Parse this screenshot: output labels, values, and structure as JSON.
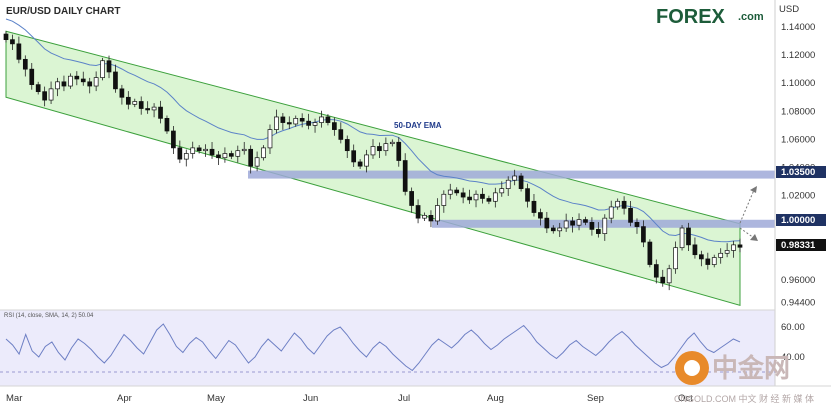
{
  "header": {
    "title": "EUR/USD DAILY CHART",
    "logo_text": "FOREX",
    "logo_suffix": ".com",
    "currency": "USD"
  },
  "chart_data": [
    {
      "type": "candlestick",
      "title": "EUR/USD DAILY CHART",
      "ylabel": "USD",
      "ylim": [
        0.94,
        1.15
      ],
      "y_ticks": [
        "1.14000",
        "1.12000",
        "1.10000",
        "1.08000",
        "1.06000",
        "1.04000",
        "1.02000",
        "0.96000",
        "0.94400"
      ],
      "x_months": [
        "Mar",
        "Apr",
        "May",
        "Jun",
        "Jul",
        "Aug",
        "Sep",
        "Oct"
      ],
      "series": [
        {
          "name": "EUR/USD",
          "close_path": [
            1.131,
            1.128,
            1.117,
            1.11,
            1.099,
            1.094,
            1.088,
            1.096,
            1.101,
            1.098,
            1.105,
            1.103,
            1.101,
            1.098,
            1.104,
            1.116,
            1.108,
            1.096,
            1.09,
            1.085,
            1.087,
            1.082,
            1.081,
            1.083,
            1.075,
            1.066,
            1.054,
            1.046,
            1.05,
            1.054,
            1.052,
            1.053,
            1.049,
            1.047,
            1.05,
            1.048,
            1.052,
            1.053,
            1.041,
            1.047,
            1.054,
            1.067,
            1.076,
            1.072,
            1.071,
            1.075,
            1.073,
            1.07,
            1.072,
            1.076,
            1.072,
            1.067,
            1.06,
            1.052,
            1.044,
            1.041,
            1.049,
            1.055,
            1.052,
            1.057,
            1.058,
            1.045,
            1.023,
            1.013,
            1.004,
            1.006,
            1.002,
            1.013,
            1.021,
            1.024,
            1.022,
            1.019,
            1.017,
            1.021,
            1.018,
            1.016,
            1.022,
            1.025,
            1.031,
            1.034,
            1.025,
            1.016,
            1.008,
            1.004,
            0.997,
            0.995,
            0.997,
            1.002,
            0.999,
            1.003,
            1.001,
            0.996,
            0.993,
            1.004,
            1.012,
            1.016,
            1.011,
            1.001,
            0.998,
            0.987,
            0.971,
            0.962,
            0.958,
            0.968,
            0.983,
            0.997,
            0.985,
            0.978,
            0.975,
            0.971,
            0.976,
            0.979,
            0.981,
            0.985,
            0.9833
          ]
        }
      ],
      "ema_label": "50-DAY EMA",
      "levels": [
        {
          "label": "1.03500",
          "value": 1.035
        },
        {
          "label": "1.00000",
          "value": 1.0
        }
      ],
      "last_price_label": "0.98331",
      "last_price": 0.9833,
      "channel": {
        "upper": [
          1.137,
          1.0
        ],
        "lower": [
          1.09,
          0.942
        ]
      }
    },
    {
      "type": "line",
      "title": "RSI (14, close, SMA, 14, 2) 50.04",
      "ylim": [
        25,
        70
      ],
      "y_ticks": [
        "60.00",
        "40.00"
      ],
      "values": [
        52,
        48,
        42,
        55,
        44,
        40,
        47,
        50,
        43,
        38,
        46,
        52,
        49,
        45,
        40,
        36,
        41,
        48,
        55,
        51,
        46,
        42,
        50,
        58,
        62,
        55,
        47,
        43,
        49,
        53,
        50,
        44,
        39,
        45,
        51,
        48,
        42,
        36,
        40,
        47,
        52,
        48,
        44,
        50,
        56,
        52,
        46,
        42,
        48,
        54,
        58,
        60,
        55,
        49,
        44,
        40,
        46,
        50,
        47,
        42,
        38,
        34,
        31,
        36,
        42,
        48,
        52,
        49,
        46,
        50,
        55,
        58,
        54,
        49,
        45,
        48,
        52,
        55,
        58,
        61,
        56,
        50,
        46,
        42,
        39,
        43,
        48,
        51,
        47,
        44,
        41,
        45,
        50,
        54,
        57,
        53,
        48,
        44,
        40,
        36,
        33,
        35,
        40,
        46,
        52,
        56,
        50,
        45,
        43,
        46,
        49,
        52,
        50.04
      ]
    }
  ],
  "watermark": {
    "cn": "中金网",
    "en": "CNGOLD.COM 中文 财 经 新 媒 体"
  }
}
